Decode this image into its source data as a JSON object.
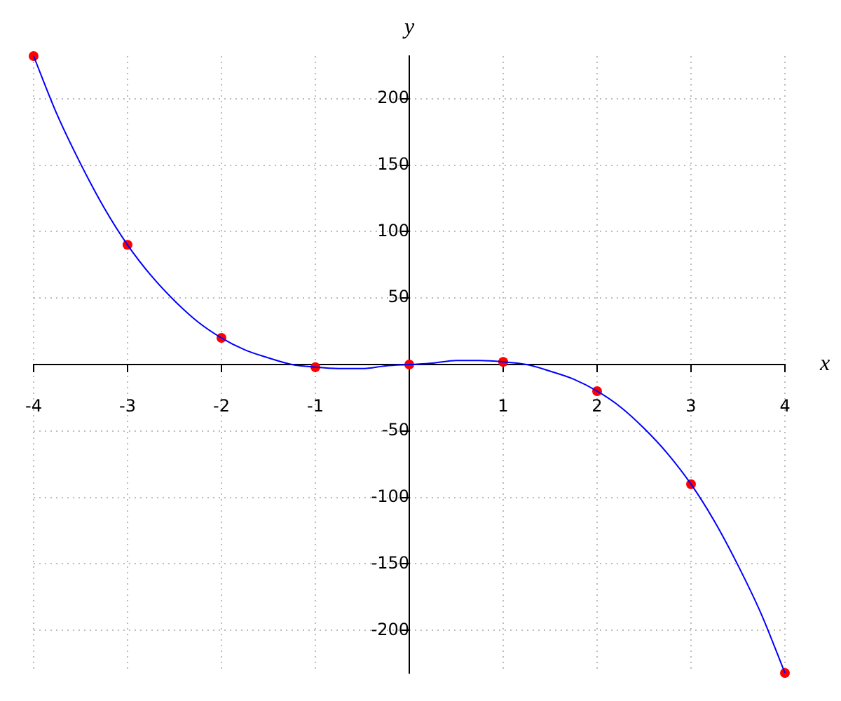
{
  "chart_data": {
    "type": "line",
    "xlabel": "x",
    "ylabel": "y",
    "xlim": [
      -4,
      4
    ],
    "ylim": [
      -232,
      232
    ],
    "xticks": [
      -4,
      -3,
      -2,
      -1,
      1,
      2,
      3,
      4
    ],
    "yticks": [
      -200,
      -150,
      -100,
      -50,
      50,
      100,
      150,
      200
    ],
    "grid": true,
    "legend": false,
    "series": [
      {
        "type": "line",
        "color": "#0000ff",
        "marker": "none",
        "line_style": "solid",
        "x": [
          -4,
          -3.75,
          -3.5,
          -3.25,
          -3,
          -2.75,
          -2.5,
          -2.25,
          -2,
          -1.75,
          -1.5,
          -1.25,
          -1,
          -0.75,
          -0.5,
          -0.25,
          0,
          0.25,
          0.5,
          0.75,
          1,
          1.25,
          1.5,
          1.75,
          2,
          2.25,
          2.5,
          2.75,
          3,
          3.25,
          3.5,
          3.75,
          4
        ],
        "values": [
          232,
          188,
          151,
          118,
          90,
          67,
          48,
          32,
          20,
          11,
          5,
          0,
          -2,
          -3,
          -3,
          -1,
          0,
          1,
          3,
          3,
          2,
          0,
          -5,
          -11,
          -20,
          -32,
          -48,
          -67,
          -90,
          -118,
          -151,
          -188,
          -232
        ]
      },
      {
        "type": "scatter",
        "color": "#ff0000",
        "marker": "circle",
        "x": [
          -4,
          -3,
          -2,
          -1,
          0,
          1,
          2,
          3,
          4
        ],
        "values": [
          232,
          90,
          20,
          -2,
          0,
          2,
          -20,
          -90,
          -232
        ]
      }
    ]
  }
}
